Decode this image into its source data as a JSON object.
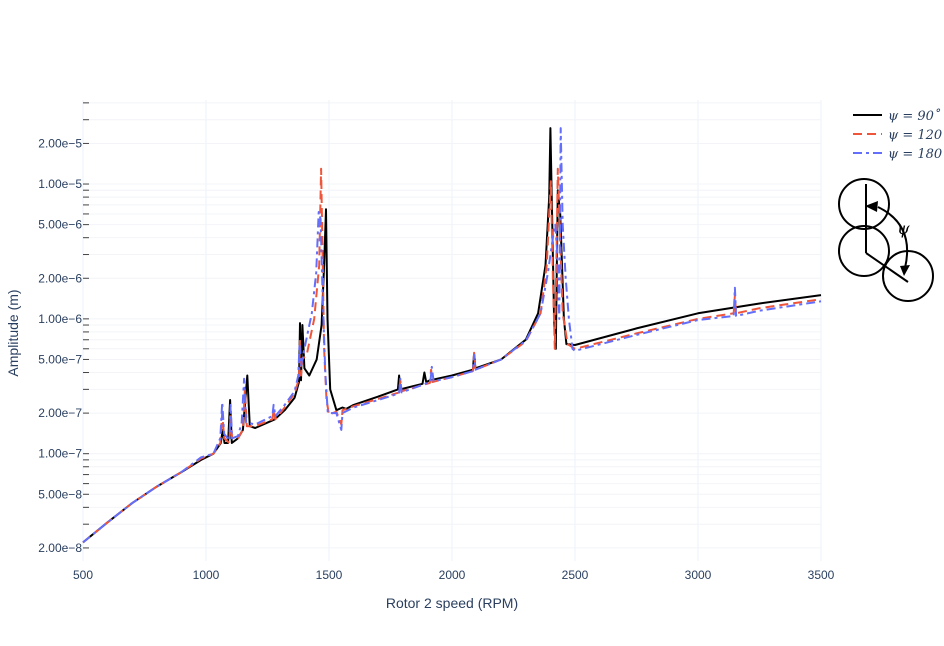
{
  "chart_data": {
    "type": "line",
    "xlabel": "Rotor 2 speed (RPM)",
    "ylabel": "Amplitude (m)",
    "xlim": [
      500,
      3500
    ],
    "ylim_log": [
      1.6e-08,
      4.2e-05
    ],
    "y_scale": "log",
    "grid": true,
    "legend_position": "top-right",
    "x_ticks": [
      500,
      1000,
      1500,
      2000,
      2500,
      3000,
      3500
    ],
    "x_tick_labels": [
      "500",
      "1000",
      "1500",
      "2000",
      "2500",
      "3000",
      "3500"
    ],
    "y_ticks": [
      2e-08,
      5e-08,
      1e-07,
      2e-07,
      5e-07,
      1e-06,
      2e-06,
      5e-06,
      1e-05,
      2e-05
    ],
    "y_tick_labels": [
      "2.00e−8",
      "5.00e−8",
      "1.00e−7",
      "2.00e−7",
      "5.00e−7",
      "1.00e−6",
      "2.00e−6",
      "5.00e−6",
      "1.00e−5",
      "2.00e−5"
    ],
    "series": [
      {
        "name": "ψ = 90˚",
        "color": "#000000",
        "dash": "solid",
        "points": [
          [
            500,
            2.2e-08
          ],
          [
            600,
            3.1e-08
          ],
          [
            700,
            4.3e-08
          ],
          [
            800,
            5.7e-08
          ],
          [
            900,
            7.3e-08
          ],
          [
            980,
            9e-08
          ],
          [
            1030,
            1e-07
          ],
          [
            1060,
            1.2e-07
          ],
          [
            1068,
            1.5e-07
          ],
          [
            1075,
            1.2e-07
          ],
          [
            1090,
            1.2e-07
          ],
          [
            1098,
            2.5e-07
          ],
          [
            1105,
            1.2e-07
          ],
          [
            1130,
            1.3e-07
          ],
          [
            1150,
            1.5e-07
          ],
          [
            1168,
            3.8e-07
          ],
          [
            1178,
            1.6e-07
          ],
          [
            1200,
            1.55e-07
          ],
          [
            1250,
            1.7e-07
          ],
          [
            1280,
            1.8e-07
          ],
          [
            1320,
            2.1e-07
          ],
          [
            1360,
            2.6e-07
          ],
          [
            1378,
            3.4e-07
          ],
          [
            1382,
            9.3e-07
          ],
          [
            1386,
            3.5e-07
          ],
          [
            1392,
            9e-07
          ],
          [
            1400,
            4.3e-07
          ],
          [
            1420,
            3.8e-07
          ],
          [
            1450,
            5e-07
          ],
          [
            1470,
            9e-07
          ],
          [
            1480,
            2.5e-06
          ],
          [
            1488,
            6.5e-06
          ],
          [
            1494,
            1e-06
          ],
          [
            1505,
            3e-07
          ],
          [
            1530,
            2.1e-07
          ],
          [
            1555,
            2.2e-07
          ],
          [
            1570,
            2.15e-07
          ],
          [
            1600,
            2.3e-07
          ],
          [
            1700,
            2.65e-07
          ],
          [
            1780,
            3e-07
          ],
          [
            1785,
            3.8e-07
          ],
          [
            1790,
            3e-07
          ],
          [
            1880,
            3.3e-07
          ],
          [
            1888,
            4e-07
          ],
          [
            1895,
            3.4e-07
          ],
          [
            1910,
            3.5e-07
          ],
          [
            2000,
            3.8e-07
          ],
          [
            2085,
            4.2e-07
          ],
          [
            2090,
            5.5e-07
          ],
          [
            2095,
            4.3e-07
          ],
          [
            2200,
            5e-07
          ],
          [
            2300,
            7e-07
          ],
          [
            2350,
            1.1e-06
          ],
          [
            2380,
            2.5e-06
          ],
          [
            2395,
            8e-06
          ],
          [
            2400,
            2.6e-05
          ],
          [
            2405,
            9e-06
          ],
          [
            2415,
            1e-06
          ],
          [
            2422,
            6e-07
          ],
          [
            2430,
            9e-06
          ],
          [
            2440,
            6e-06
          ],
          [
            2455,
            1e-06
          ],
          [
            2465,
            6.5e-07
          ],
          [
            2500,
            6.4e-07
          ],
          [
            2750,
            8.5e-07
          ],
          [
            3000,
            1.1e-06
          ],
          [
            3250,
            1.3e-06
          ],
          [
            3500,
            1.5e-06
          ]
        ]
      },
      {
        "name": "ψ = 120˚",
        "color": "#ef553b",
        "dash": "dashed",
        "points": [
          [
            500,
            2.2e-08
          ],
          [
            600,
            3.1e-08
          ],
          [
            700,
            4.3e-08
          ],
          [
            800,
            5.7e-08
          ],
          [
            900,
            7.3e-08
          ],
          [
            980,
            9.2e-08
          ],
          [
            1030,
            1e-07
          ],
          [
            1058,
            1.2e-07
          ],
          [
            1066,
            2e-07
          ],
          [
            1074,
            1.3e-07
          ],
          [
            1095,
            1.2e-07
          ],
          [
            1100,
            2e-07
          ],
          [
            1106,
            1.3e-07
          ],
          [
            1130,
            1.3e-07
          ],
          [
            1150,
            1.5e-07
          ],
          [
            1158,
            3e-07
          ],
          [
            1166,
            1.6e-07
          ],
          [
            1200,
            1.6e-07
          ],
          [
            1270,
            1.8e-07
          ],
          [
            1275,
            2.1e-07
          ],
          [
            1282,
            1.8e-07
          ],
          [
            1320,
            2.2e-07
          ],
          [
            1360,
            2.8e-07
          ],
          [
            1378,
            3.6e-07
          ],
          [
            1382,
            7e-07
          ],
          [
            1386,
            3.8e-07
          ],
          [
            1392,
            5e-07
          ],
          [
            1410,
            5.5e-07
          ],
          [
            1440,
            1e-06
          ],
          [
            1460,
            2.5e-06
          ],
          [
            1468,
            1.3e-05
          ],
          [
            1474,
            3e-06
          ],
          [
            1480,
            6e-07
          ],
          [
            1490,
            2.5e-07
          ],
          [
            1500,
            1.95e-07
          ],
          [
            1530,
            2.05e-07
          ],
          [
            1550,
            1.65e-07
          ],
          [
            1555,
            2.1e-07
          ],
          [
            1600,
            2.25e-07
          ],
          [
            1700,
            2.55e-07
          ],
          [
            1785,
            2.85e-07
          ],
          [
            1790,
            3.5e-07
          ],
          [
            1795,
            2.9e-07
          ],
          [
            1910,
            3.35e-07
          ],
          [
            1915,
            4.2e-07
          ],
          [
            1920,
            3.4e-07
          ],
          [
            2000,
            3.7e-07
          ],
          [
            2085,
            4.1e-07
          ],
          [
            2090,
            5.6e-07
          ],
          [
            2095,
            4.2e-07
          ],
          [
            2200,
            5e-07
          ],
          [
            2300,
            6.8e-07
          ],
          [
            2360,
            1.1e-06
          ],
          [
            2385,
            2.5e-06
          ],
          [
            2395,
            6e-06
          ],
          [
            2402,
            1.05e-05
          ],
          [
            2410,
            2e-06
          ],
          [
            2418,
            6e-07
          ],
          [
            2425,
            3e-06
          ],
          [
            2430,
            1.3e-05
          ],
          [
            2438,
            5e-06
          ],
          [
            2450,
            1.1e-06
          ],
          [
            2470,
            6.5e-07
          ],
          [
            2500,
            6e-07
          ],
          [
            2750,
            7.8e-07
          ],
          [
            3000,
            1e-06
          ],
          [
            3145,
            1.1e-06
          ],
          [
            3150,
            1.5e-06
          ],
          [
            3155,
            1.1e-06
          ],
          [
            3250,
            1.2e-06
          ],
          [
            3500,
            1.4e-06
          ]
        ]
      },
      {
        "name": "ψ = 180˚",
        "color": "#636efa",
        "dash": "dashdot",
        "points": [
          [
            500,
            2.2e-08
          ],
          [
            600,
            3.1e-08
          ],
          [
            700,
            4.3e-08
          ],
          [
            800,
            5.7e-08
          ],
          [
            900,
            7.3e-08
          ],
          [
            980,
            9.4e-08
          ],
          [
            1030,
            1e-07
          ],
          [
            1058,
            1.3e-07
          ],
          [
            1066,
            2.4e-07
          ],
          [
            1074,
            1.4e-07
          ],
          [
            1095,
            1.25e-07
          ],
          [
            1100,
            2.3e-07
          ],
          [
            1106,
            1.3e-07
          ],
          [
            1130,
            1.35e-07
          ],
          [
            1145,
            1.7e-07
          ],
          [
            1155,
            3.6e-07
          ],
          [
            1163,
            1.7e-07
          ],
          [
            1200,
            1.65e-07
          ],
          [
            1270,
            1.9e-07
          ],
          [
            1275,
            2.3e-07
          ],
          [
            1282,
            1.9e-07
          ],
          [
            1320,
            2.3e-07
          ],
          [
            1360,
            2.9e-07
          ],
          [
            1375,
            3.8e-07
          ],
          [
            1380,
            6.5e-07
          ],
          [
            1386,
            4.5e-07
          ],
          [
            1400,
            6e-07
          ],
          [
            1430,
            1.1e-06
          ],
          [
            1448,
            2.2e-06
          ],
          [
            1458,
            6.2e-06
          ],
          [
            1466,
            5.5e-06
          ],
          [
            1474,
            1.5e-06
          ],
          [
            1485,
            4e-07
          ],
          [
            1495,
            2e-07
          ],
          [
            1530,
            2e-07
          ],
          [
            1550,
            1.5e-07
          ],
          [
            1555,
            2e-07
          ],
          [
            1600,
            2.2e-07
          ],
          [
            1700,
            2.5e-07
          ],
          [
            1785,
            2.8e-07
          ],
          [
            1790,
            3.6e-07
          ],
          [
            1795,
            2.85e-07
          ],
          [
            1912,
            3.4e-07
          ],
          [
            1918,
            4.4e-07
          ],
          [
            1925,
            3.45e-07
          ],
          [
            2000,
            3.7e-07
          ],
          [
            2085,
            4.1e-07
          ],
          [
            2090,
            5.4e-07
          ],
          [
            2095,
            4.2e-07
          ],
          [
            2200,
            5e-07
          ],
          [
            2300,
            6.9e-07
          ],
          [
            2360,
            1.1e-06
          ],
          [
            2390,
            2.2e-06
          ],
          [
            2410,
            4e-06
          ],
          [
            2420,
            5e-06
          ],
          [
            2428,
            3e-06
          ],
          [
            2436,
            1e-06
          ],
          [
            2442,
            2.6e-05
          ],
          [
            2450,
            5e-06
          ],
          [
            2462,
            2e-06
          ],
          [
            2475,
            1e-06
          ],
          [
            2490,
            6e-07
          ],
          [
            2500,
            5.8e-07
          ],
          [
            2750,
            7.6e-07
          ],
          [
            3000,
            9.8e-07
          ],
          [
            3145,
            1.05e-06
          ],
          [
            3150,
            1.7e-06
          ],
          [
            3155,
            1.05e-06
          ],
          [
            3250,
            1.15e-06
          ],
          [
            3500,
            1.35e-06
          ]
        ]
      }
    ],
    "inset_label": "ψ"
  }
}
